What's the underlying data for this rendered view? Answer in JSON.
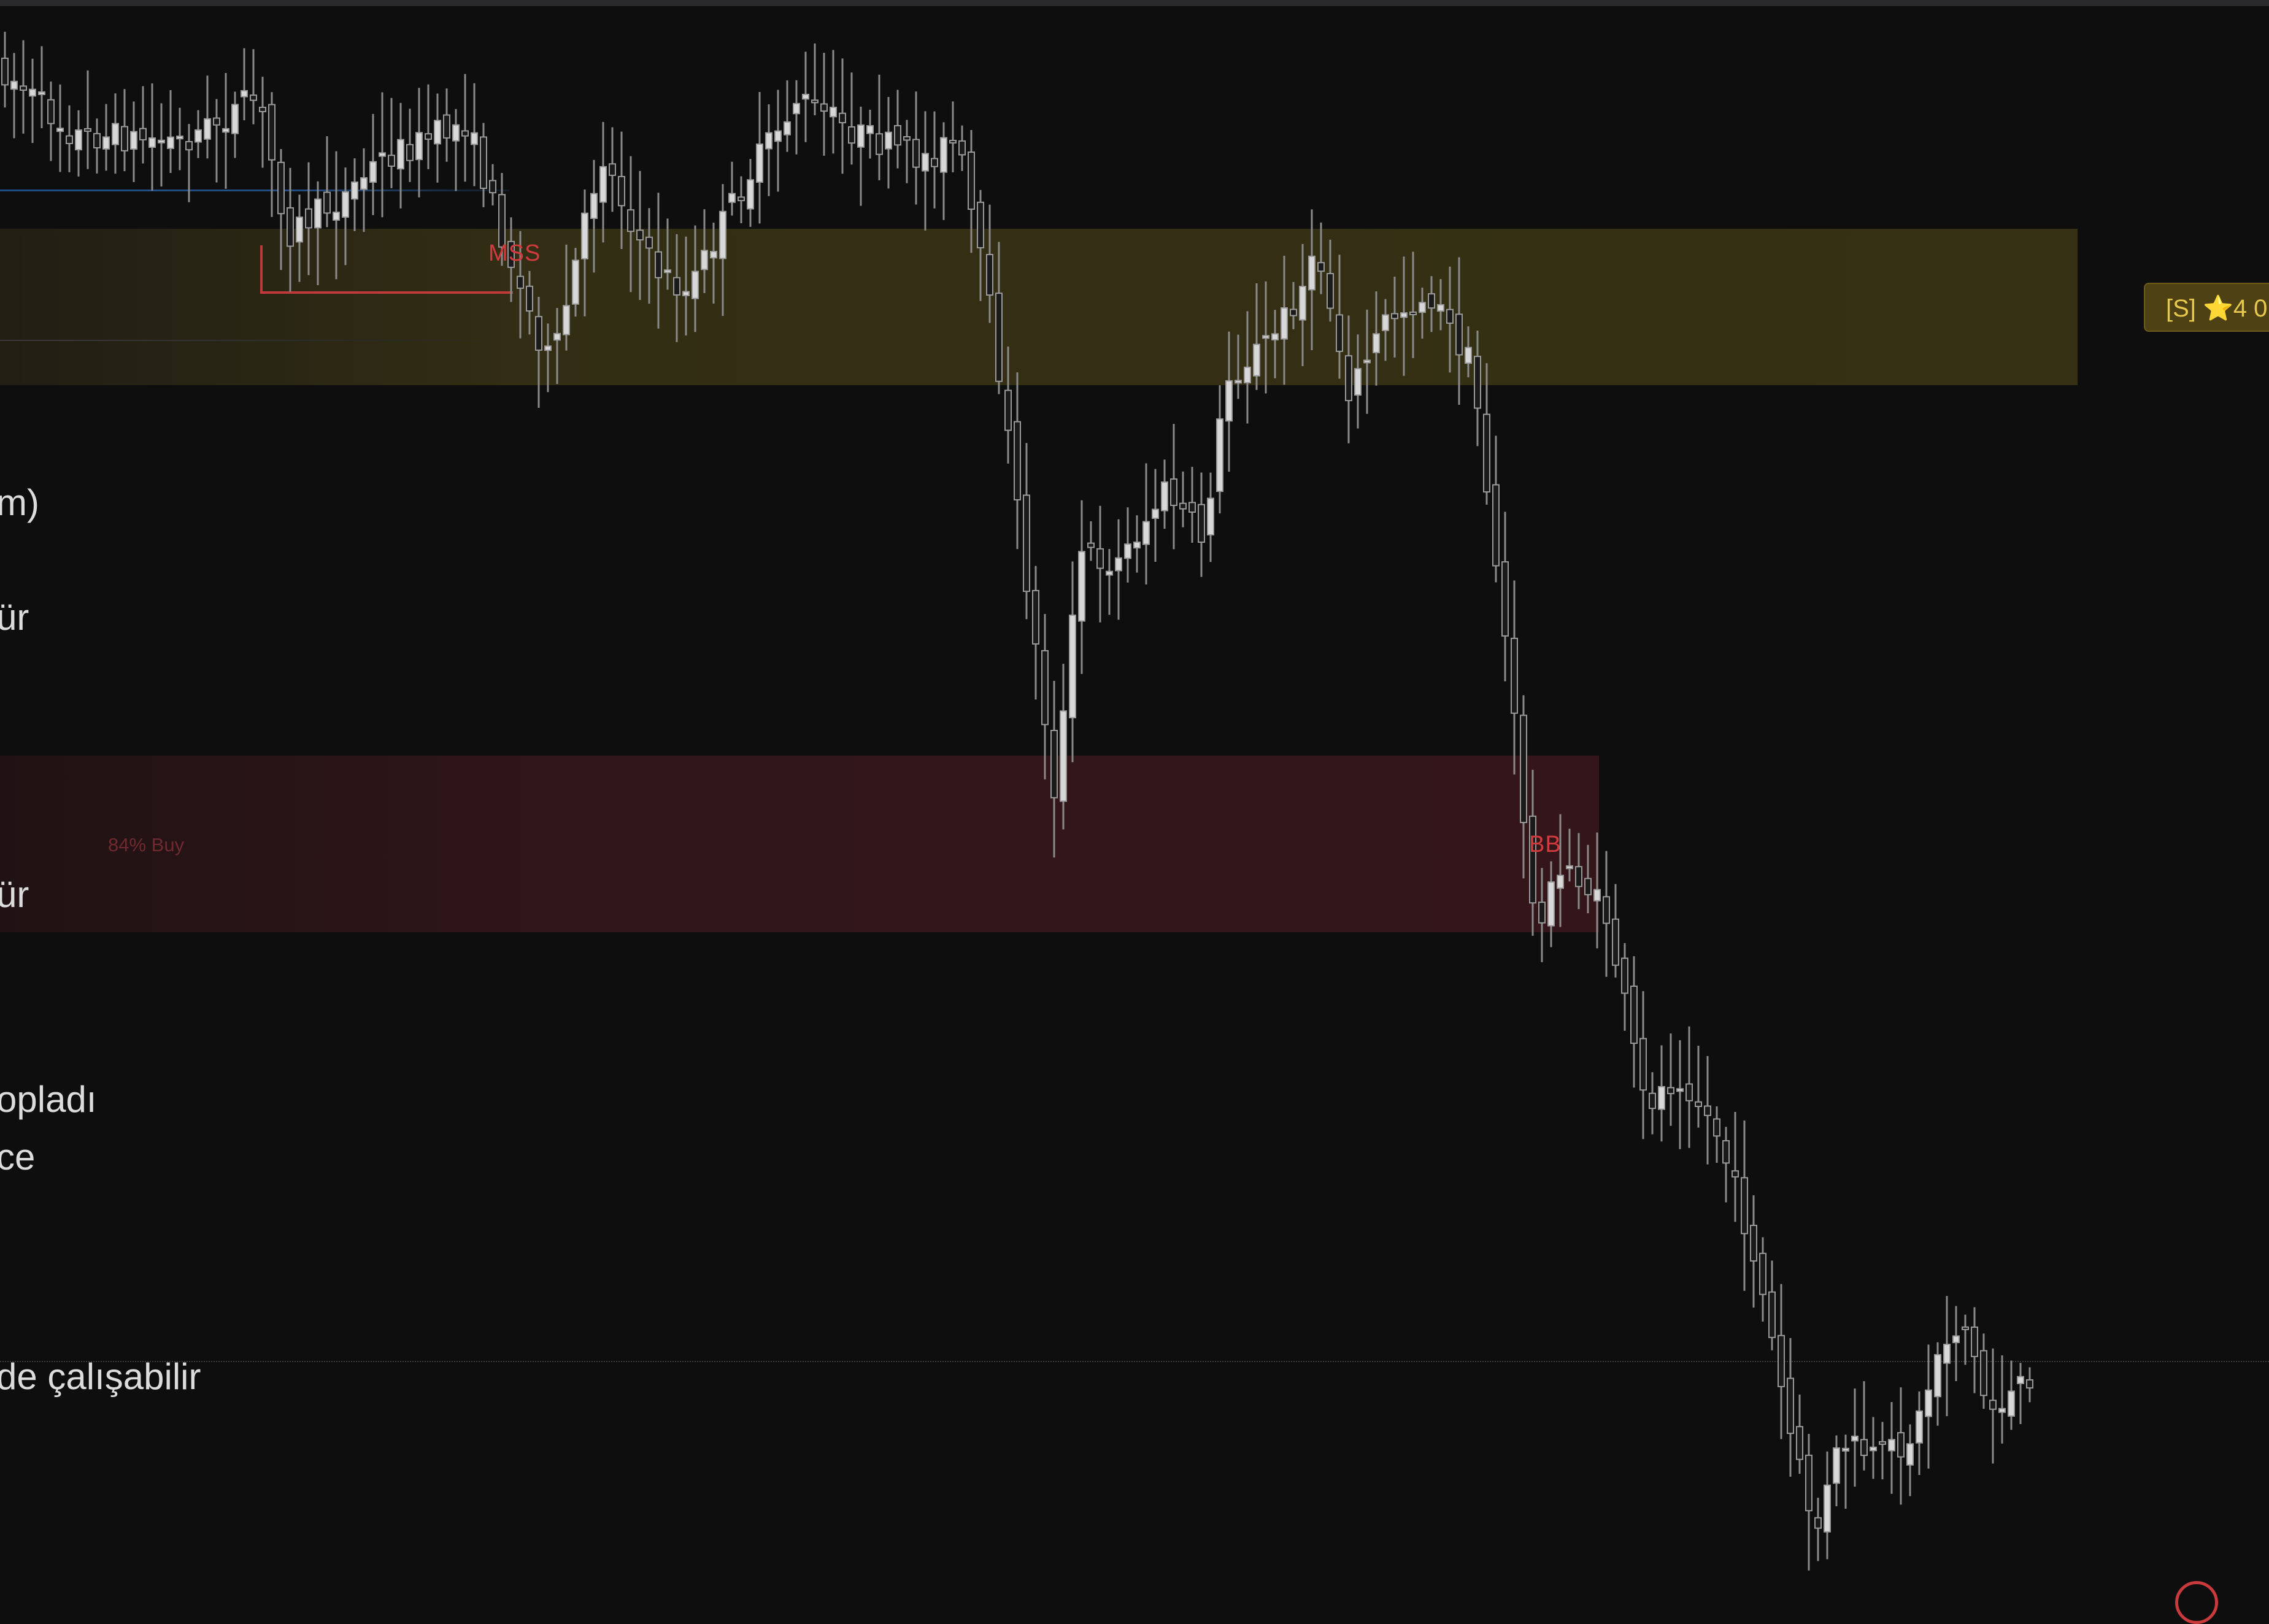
{
  "chart": {
    "labels": {
      "mss": "MSS",
      "bb": "BB",
      "buy_pct": "84% Buy"
    },
    "side_text": [
      "m)",
      "ür",
      "ür",
      "opladı",
      "ce",
      "de çalışabilir"
    ],
    "badge": "[S] ⭐4 0",
    "colors": {
      "background": "#0e0e0f",
      "supply_zone": "#363114",
      "demand_zone": "#34161a",
      "candle": "#c8c8c8",
      "accent_red": "#d13a3f",
      "badge_text": "#e7c94d",
      "line_blue": "#244e80"
    }
  }
}
